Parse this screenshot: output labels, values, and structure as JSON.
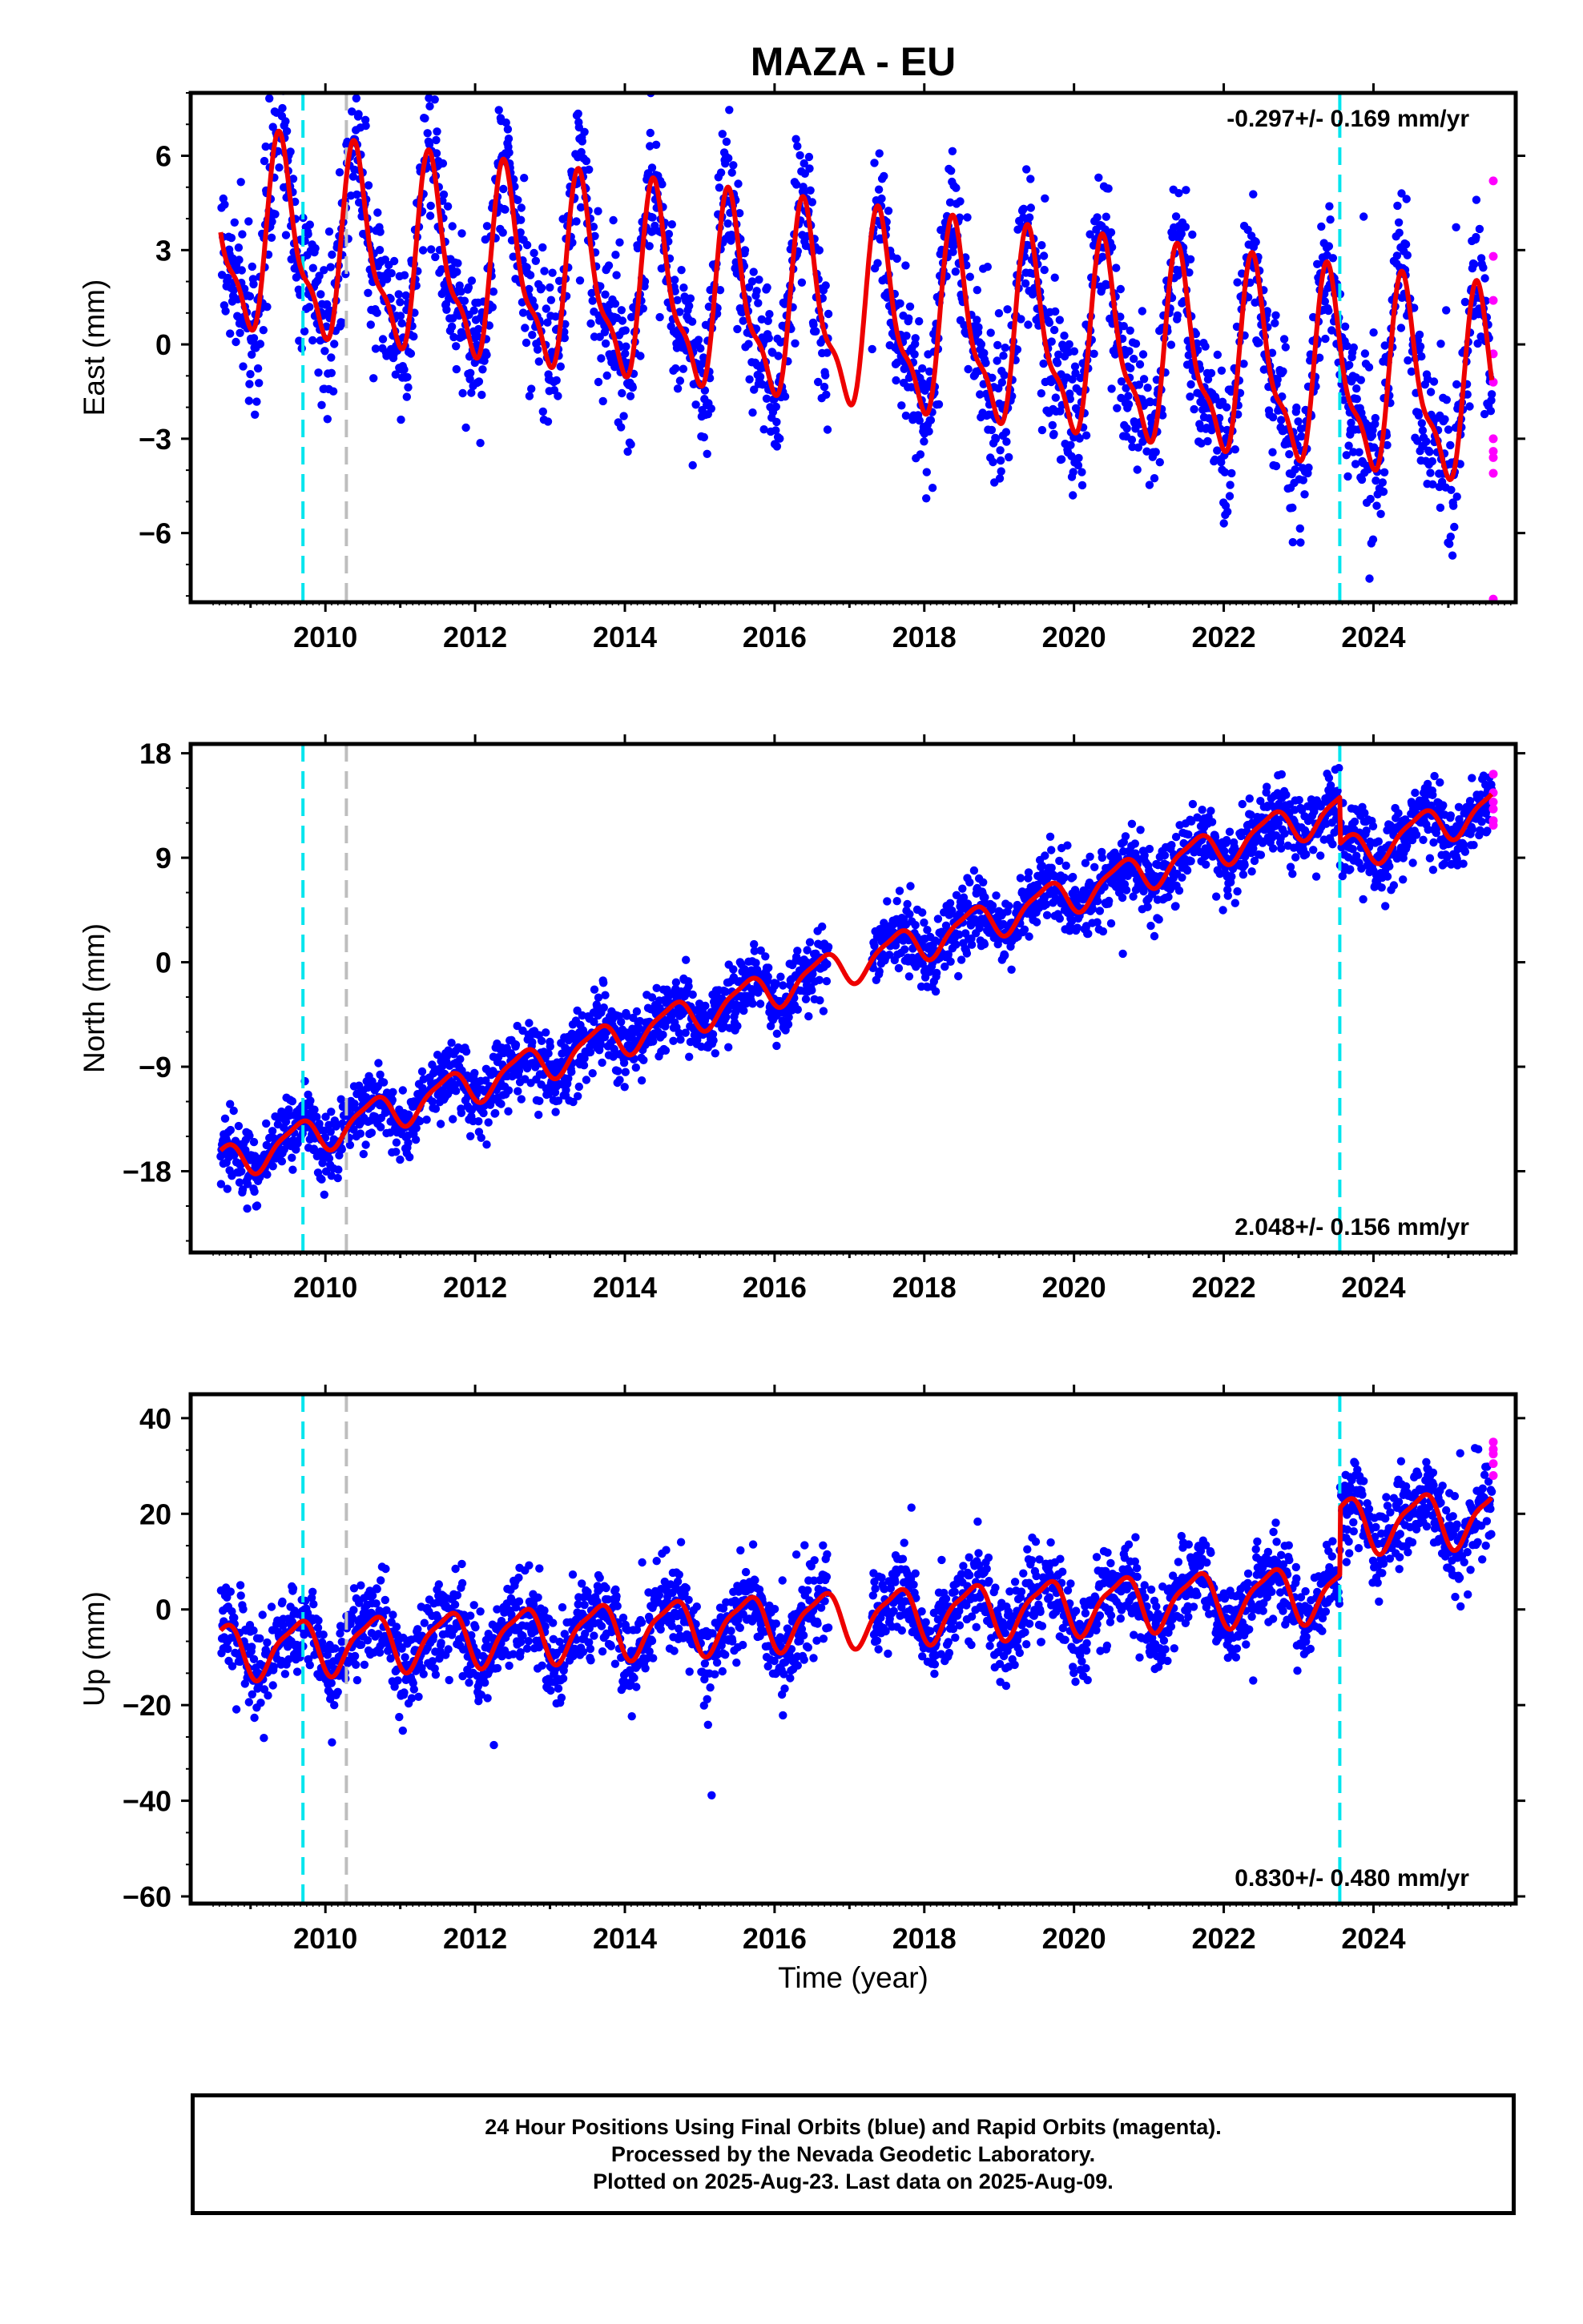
{
  "title": "MAZA - EU",
  "xlabel": "Time (year)",
  "colors": {
    "final_orbits": "#0000ff",
    "rapid_orbits": "#ff00ff",
    "model": "#ee0000",
    "offset_equipment": "#00e5ee",
    "offset_other": "#bebebe",
    "frame": "#000000"
  },
  "caption": {
    "line1": "24 Hour Positions Using Final Orbits (blue) and Rapid Orbits (magenta).",
    "line2": "Processed by the Nevada Geodetic Laboratory.",
    "line3": "Plotted on 2025-Aug-23. Last data on 2025-Aug-09."
  },
  "chart_data": [
    {
      "type": "scatter",
      "name": "east",
      "ylabel": "East (mm)",
      "rate_label": "-0.297+/- 0.169 mm/yr",
      "xlim": [
        2008.2,
        2025.9
      ],
      "ylim": [
        -8.2,
        8.0
      ],
      "yticks": [
        -6,
        -3,
        0,
        3,
        6
      ],
      "xticks": [
        2010,
        2012,
        2014,
        2016,
        2018,
        2020,
        2022,
        2024
      ],
      "model": {
        "offset": 1.0,
        "trend": -0.297,
        "amp_a": 2.8,
        "amp_b": 1.0,
        "peak_a": 0.42,
        "peak_b": 0.35,
        "jumps": []
      },
      "noise": 1.2,
      "vlines": [
        {
          "x": 2009.7,
          "type": "equipment"
        },
        {
          "x": 2010.28,
          "type": "other"
        },
        {
          "x": 2023.55,
          "type": "equipment"
        }
      ],
      "rapid_points": [
        5.2,
        2.8,
        1.4,
        -0.3,
        -1.2,
        -3.0,
        -3.4,
        -3.6,
        -4.1,
        -8.1
      ]
    },
    {
      "type": "scatter",
      "name": "north",
      "ylabel": "North (mm)",
      "rate_label": "2.048+/- 0.156 mm/yr",
      "xlim": [
        2008.2,
        2025.9
      ],
      "ylim": [
        -25.0,
        18.8
      ],
      "yticks": [
        -18,
        -9,
        0,
        9,
        18
      ],
      "xticks": [
        2010,
        2012,
        2014,
        2016,
        2018,
        2020,
        2022,
        2024
      ],
      "model": {
        "offset": -1.0,
        "trend": 2.048,
        "amp_a": 1.5,
        "amp_b": 0.4,
        "peak_a": 0.62,
        "peak_b": 0.3,
        "jumps": [
          {
            "x": 2023.55,
            "dy": -4.0
          }
        ]
      },
      "noise": 1.5,
      "vlines": [
        {
          "x": 2009.7,
          "type": "equipment"
        },
        {
          "x": 2010.28,
          "type": "other"
        },
        {
          "x": 2023.55,
          "type": "equipment"
        }
      ],
      "rapid_points": [
        16.2,
        14.6,
        13.8,
        13.2,
        12.2,
        11.8
      ]
    },
    {
      "type": "scatter",
      "name": "up",
      "ylabel": "Up (mm)",
      "rate_label": "0.830+/- 0.480 mm/yr",
      "xlim": [
        2008.2,
        2025.9
      ],
      "ylim": [
        -61.5,
        45.0
      ],
      "yticks": [
        -60,
        -40,
        -20,
        0,
        20,
        40
      ],
      "xticks": [
        2010,
        2012,
        2014,
        2016,
        2018,
        2020,
        2022,
        2024
      ],
      "model": {
        "offset": -2.0,
        "trend": 0.83,
        "amp_a": 5.5,
        "amp_b": 1.5,
        "peak_a": 0.62,
        "peak_b": 0.3,
        "jumps": [
          {
            "x": 2023.55,
            "dy": 14.0
          }
        ]
      },
      "noise": 4.5,
      "vlines": [
        {
          "x": 2009.7,
          "type": "equipment"
        },
        {
          "x": 2010.28,
          "type": "other"
        },
        {
          "x": 2023.55,
          "type": "equipment"
        }
      ],
      "rapid_points": [
        35.0,
        33.5,
        32.5,
        30.5,
        28.0
      ]
    }
  ]
}
